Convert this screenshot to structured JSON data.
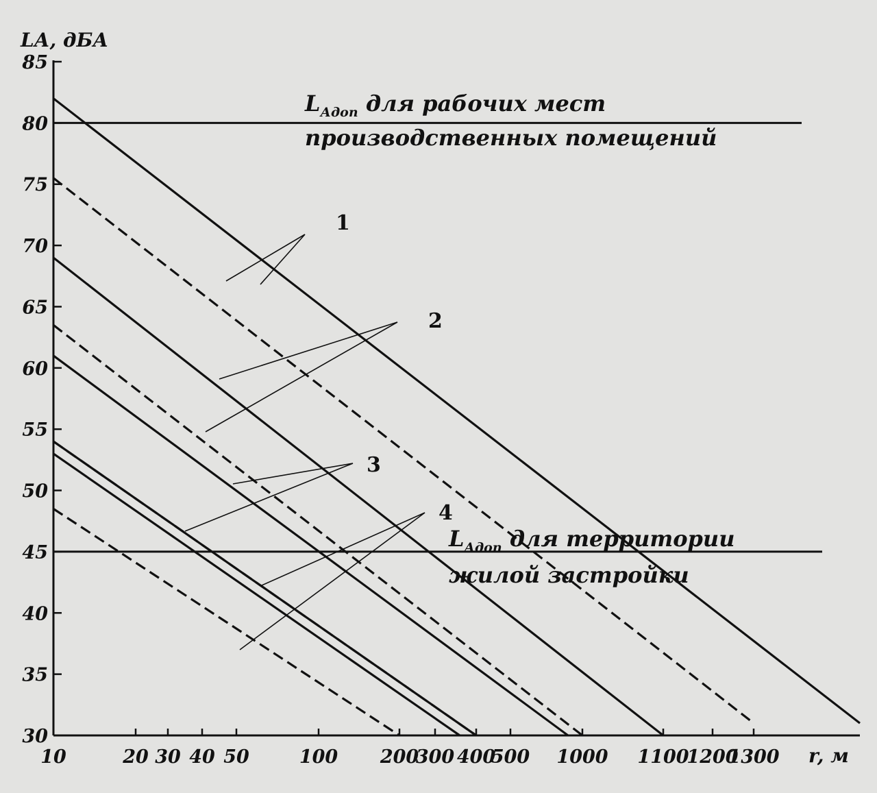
{
  "chart_data": {
    "type": "line",
    "xlabel": "r, м",
    "ylabel": "LА, дБА",
    "xscale": "custom-nonlinear",
    "ylim": [
      30,
      85
    ],
    "y_ticks": [
      30,
      35,
      40,
      45,
      50,
      55,
      60,
      65,
      70,
      75,
      80,
      85
    ],
    "x_ticks": [
      10,
      20,
      30,
      40,
      50,
      100,
      200,
      300,
      400,
      500,
      1000,
      1100,
      1200,
      1300
    ],
    "grid": false,
    "reference_lines": [
      {
        "y": 80,
        "label_main": "L",
        "label_sub": "Адоп",
        "label_text": " для рабочих мест",
        "label_line2": "производственных помещений"
      },
      {
        "y": 45,
        "label_main": "L",
        "label_sub": "Адоп",
        "label_text": " для территории",
        "label_line2": "жилой застройки"
      }
    ],
    "callout_labels": [
      "1",
      "2",
      "3",
      "4"
    ],
    "series": [
      {
        "style": "solid",
        "points": [
          [
            10,
            82
          ],
          [
            1500,
            31
          ]
        ]
      },
      {
        "style": "dashed",
        "points": [
          [
            10,
            75.5
          ],
          [
            1300,
            31
          ]
        ]
      },
      {
        "style": "solid",
        "points": [
          [
            10,
            69
          ],
          [
            1100,
            30
          ]
        ]
      },
      {
        "style": "dashed",
        "points": [
          [
            10,
            63.5
          ],
          [
            1000,
            30
          ]
        ]
      },
      {
        "style": "solid",
        "points": [
          [
            10,
            61
          ],
          [
            900,
            30
          ]
        ]
      },
      {
        "style": "solid",
        "points": [
          [
            10,
            54
          ],
          [
            400,
            30
          ]
        ]
      },
      {
        "style": "dashed",
        "points": [
          [
            10,
            54
          ],
          [
            400,
            30
          ]
        ]
      },
      {
        "style": "solid",
        "points": [
          [
            10,
            53
          ],
          [
            360,
            30
          ]
        ]
      },
      {
        "style": "dashed",
        "points": [
          [
            10,
            48.5
          ],
          [
            200,
            30
          ]
        ]
      }
    ]
  }
}
